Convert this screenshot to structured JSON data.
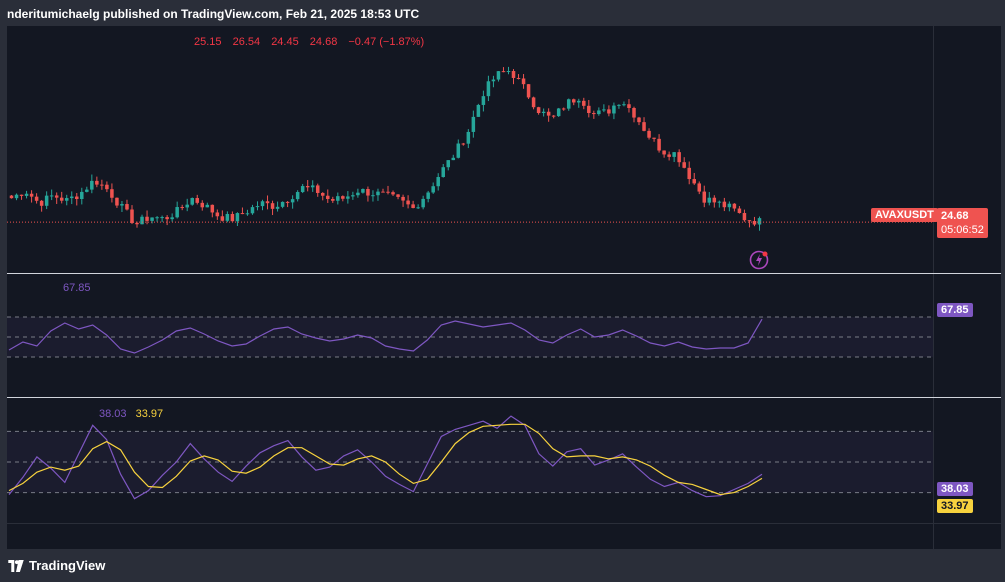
{
  "header": {
    "publisher_text": "nderitumichaelg published on TradingView.com, Feb 21, 2025 18:53 UTC"
  },
  "ohlc": {
    "open": "25.15",
    "high": "26.54",
    "low": "24.45",
    "close": "24.68",
    "change": "−0.47 (−1.87%)"
  },
  "colors": {
    "up": "#26a69a",
    "down": "#ef5350",
    "rsi": "#7e57c2",
    "ma": "#f7d23e",
    "background": "#131722",
    "frame": "#2a2e39"
  },
  "price_tag": {
    "symbol": "AVAXUSDT",
    "price": "24.68",
    "countdown": "05:06:52"
  },
  "rsi_pane": {
    "value_label": "67.85",
    "tag": "67.85"
  },
  "stoch_pane": {
    "k_label": "38.03",
    "d_label": "33.97",
    "k_tag": "38.03",
    "d_tag": "33.97"
  },
  "footer": {
    "brand": "TradingView"
  },
  "chart_data": [
    {
      "type": "candlestick",
      "symbol": "AVAXUSDT",
      "last_price": 24.68,
      "current_candle": {
        "open": 25.15,
        "high": 26.54,
        "low": 24.45,
        "close": 24.68
      },
      "close_trace": [
        25.6,
        25.9,
        25.4,
        25.7,
        25.5,
        25.8,
        26.3,
        25.9,
        25.2,
        24.6,
        24.9,
        24.8,
        25.1,
        25.6,
        25.3,
        24.9,
        24.8,
        25.1,
        25.4,
        25.3,
        25.6,
        26.0,
        25.9,
        25.5,
        25.6,
        25.9,
        25.8,
        25.7,
        25.5,
        25.2,
        25.8,
        26.6,
        27.3,
        28.2,
        29.6,
        30.3,
        30.5,
        29.8,
        29.0,
        28.6,
        29.2,
        29.5,
        28.8,
        28.9,
        29.4,
        28.8,
        28.0,
        27.4,
        27.3,
        26.4,
        25.6,
        25.4,
        25.2,
        24.8,
        24.7
      ]
    },
    {
      "type": "line",
      "indicator": "RSI",
      "series": [
        {
          "values": [
            37,
            45,
            41,
            56,
            64,
            58,
            62,
            52,
            38,
            34,
            40,
            47,
            56,
            59,
            53,
            46,
            41,
            43,
            51,
            58,
            60,
            53,
            49,
            46,
            48,
            52,
            49,
            41,
            38,
            36,
            47,
            62,
            66,
            63,
            60,
            62,
            64,
            57,
            47,
            44,
            52,
            58,
            50,
            52,
            57,
            51,
            44,
            41,
            45,
            40,
            38,
            39,
            39,
            44,
            67.85
          ]
        }
      ],
      "last_value": 67.85
    },
    {
      "type": "line",
      "indicator": "Stochastic",
      "series": [
        {
          "values": [
            18,
            35,
            55,
            44,
            30,
            58,
            86,
            72,
            38,
            14,
            22,
            37,
            50,
            68,
            53,
            40,
            31,
            46,
            59,
            66,
            71,
            55,
            42,
            45,
            56,
            62,
            50,
            36,
            28,
            21,
            48,
            75,
            82,
            86,
            90,
            83,
            95,
            86,
            58,
            46,
            60,
            63,
            47,
            52,
            58,
            45,
            33,
            26,
            30,
            22,
            16,
            17,
            23,
            29,
            38.03
          ]
        },
        {
          "values": [
            22,
            29,
            40,
            45,
            42,
            46,
            63,
            70,
            62,
            40,
            26,
            25,
            36,
            51,
            56,
            52,
            41,
            39,
            45,
            56,
            64,
            64,
            56,
            48,
            47,
            53,
            56,
            50,
            38,
            29,
            33,
            50,
            68,
            79,
            85,
            86,
            87,
            87,
            78,
            63,
            55,
            56,
            56,
            53,
            55,
            52,
            46,
            37,
            30,
            28,
            23,
            18,
            20,
            26,
            33.97
          ]
        }
      ],
      "k_last": 38.03,
      "d_last": 33.97
    }
  ]
}
